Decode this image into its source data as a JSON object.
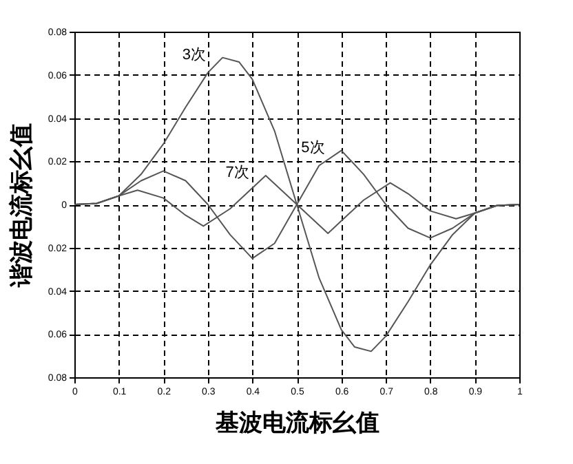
{
  "chart_data": {
    "type": "line",
    "xlabel": "基波电流标幺值",
    "ylabel": "谐波电流标幺值",
    "xlim": [
      0,
      1
    ],
    "xticks": [
      0,
      0.1,
      0.2,
      0.3,
      0.4,
      0.5,
      0.6,
      0.7,
      0.8,
      0.9,
      1
    ],
    "ylim": [
      -0.08,
      0.08
    ],
    "yticks": [
      {
        "value": -0.08,
        "label": "0.08"
      },
      {
        "value": -0.06,
        "label": "0.06"
      },
      {
        "value": -0.04,
        "label": "0.04"
      },
      {
        "value": -0.02,
        "label": "0.02"
      },
      0,
      0.02,
      0.04,
      0.06,
      0.08
    ],
    "grid": true,
    "legend": false,
    "marker": "none",
    "line_style": "solid",
    "series": [
      {
        "name": "3次",
        "color": "#555555",
        "x": [
          0,
          0.05,
          0.1,
          0.15,
          0.2,
          0.25,
          0.3,
          0.333,
          0.37,
          0.4,
          0.45,
          0.5,
          0.55,
          0.6,
          0.63,
          0.667,
          0.7,
          0.75,
          0.8,
          0.85,
          0.9,
          0.95,
          1
        ],
        "values": [
          0,
          0.0005,
          0.004,
          0.014,
          0.028,
          0.045,
          0.061,
          0.068,
          0.066,
          0.058,
          0.034,
          0,
          -0.034,
          -0.058,
          -0.066,
          -0.068,
          -0.061,
          -0.045,
          -0.028,
          -0.014,
          -0.004,
          -0.0005,
          0
        ]
      },
      {
        "name": "5次",
        "color": "#555555",
        "x": [
          0,
          0.05,
          0.1,
          0.15,
          0.2,
          0.25,
          0.3,
          0.35,
          0.4,
          0.45,
          0.5,
          0.55,
          0.6,
          0.65,
          0.7,
          0.75,
          0.8,
          0.85,
          0.9,
          0.95,
          1
        ],
        "values": [
          0,
          0.0005,
          0.004,
          0.011,
          0.0155,
          0.011,
          0,
          -0.014,
          -0.025,
          -0.018,
          0,
          0.018,
          0.025,
          0.014,
          0,
          -0.011,
          -0.0155,
          -0.011,
          -0.004,
          -0.0005,
          0
        ]
      },
      {
        "name": "7次",
        "color": "#555555",
        "x": [
          0,
          0.05,
          0.1,
          0.142,
          0.2,
          0.25,
          0.29,
          0.35,
          0.43,
          0.5,
          0.57,
          0.65,
          0.71,
          0.75,
          0.8,
          0.858,
          0.9,
          0.95,
          1
        ],
        "values": [
          0,
          0.0005,
          0.004,
          0.0066,
          0.003,
          -0.005,
          -0.01,
          -0.002,
          0.0134,
          0,
          -0.0134,
          0.002,
          0.01,
          0.005,
          -0.003,
          -0.0066,
          -0.004,
          -0.0005,
          0
        ]
      }
    ]
  }
}
